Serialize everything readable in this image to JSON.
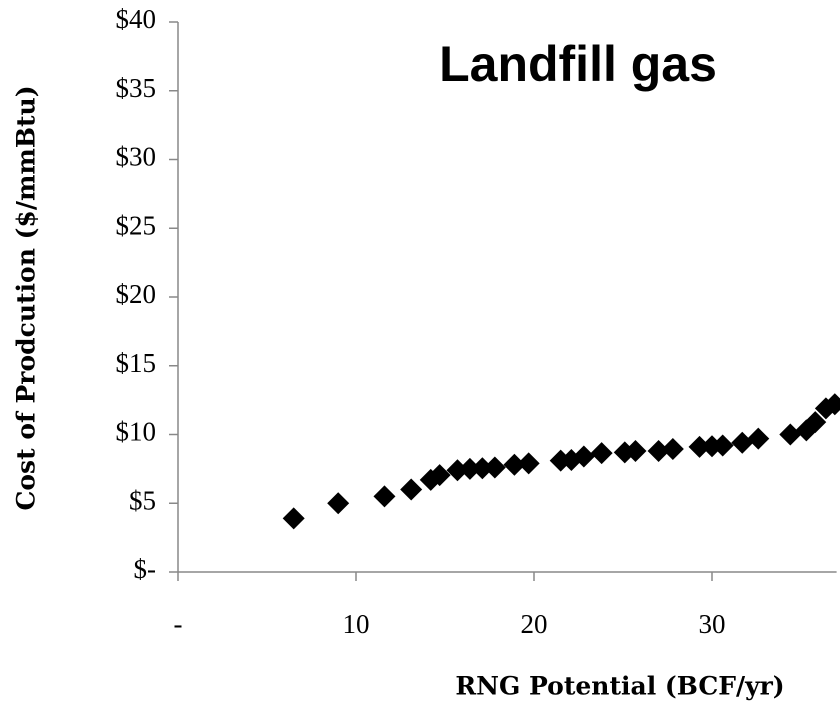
{
  "chart_data": {
    "type": "scatter",
    "title": "Landfill gas",
    "x_label": "RNG Potential (BCF/yr)",
    "y_label": "Cost of Prodcution ($/mmBtu)",
    "color": "#000000",
    "xlim": [
      0,
      37
    ],
    "ylim": [
      0,
      40
    ],
    "xticks": [
      {
        "value": 0,
        "label": "-"
      },
      10,
      20,
      30
    ],
    "yticks": [
      {
        "value": 0,
        "label": "$-"
      },
      {
        "value": 5,
        "label": "$5"
      },
      {
        "value": 10,
        "label": "$10"
      },
      {
        "value": 15,
        "label": "$15"
      },
      {
        "value": 20,
        "label": "$20"
      },
      {
        "value": 25,
        "label": "$25"
      },
      {
        "value": 30,
        "label": "$30"
      },
      {
        "value": 35,
        "label": "$35"
      },
      {
        "value": 40,
        "label": "$40"
      }
    ],
    "x": [
      6.5,
      9.0,
      11.6,
      13.1,
      14.2,
      14.7,
      15.7,
      16.4,
      17.1,
      17.8,
      18.9,
      19.7,
      21.5,
      22.1,
      22.8,
      23.8,
      25.1,
      25.7,
      27.0,
      27.8,
      29.3,
      30.0,
      30.6,
      31.7,
      32.6,
      34.4,
      35.3,
      35.8,
      36.4,
      36.9
    ],
    "values": [
      3.9,
      5.0,
      5.5,
      6.0,
      6.7,
      7.05,
      7.4,
      7.5,
      7.55,
      7.6,
      7.8,
      7.9,
      8.1,
      8.15,
      8.4,
      8.65,
      8.7,
      8.8,
      8.8,
      8.95,
      9.1,
      9.15,
      9.2,
      9.4,
      9.7,
      10.0,
      10.3,
      10.9,
      11.9,
      12.2
    ]
  }
}
